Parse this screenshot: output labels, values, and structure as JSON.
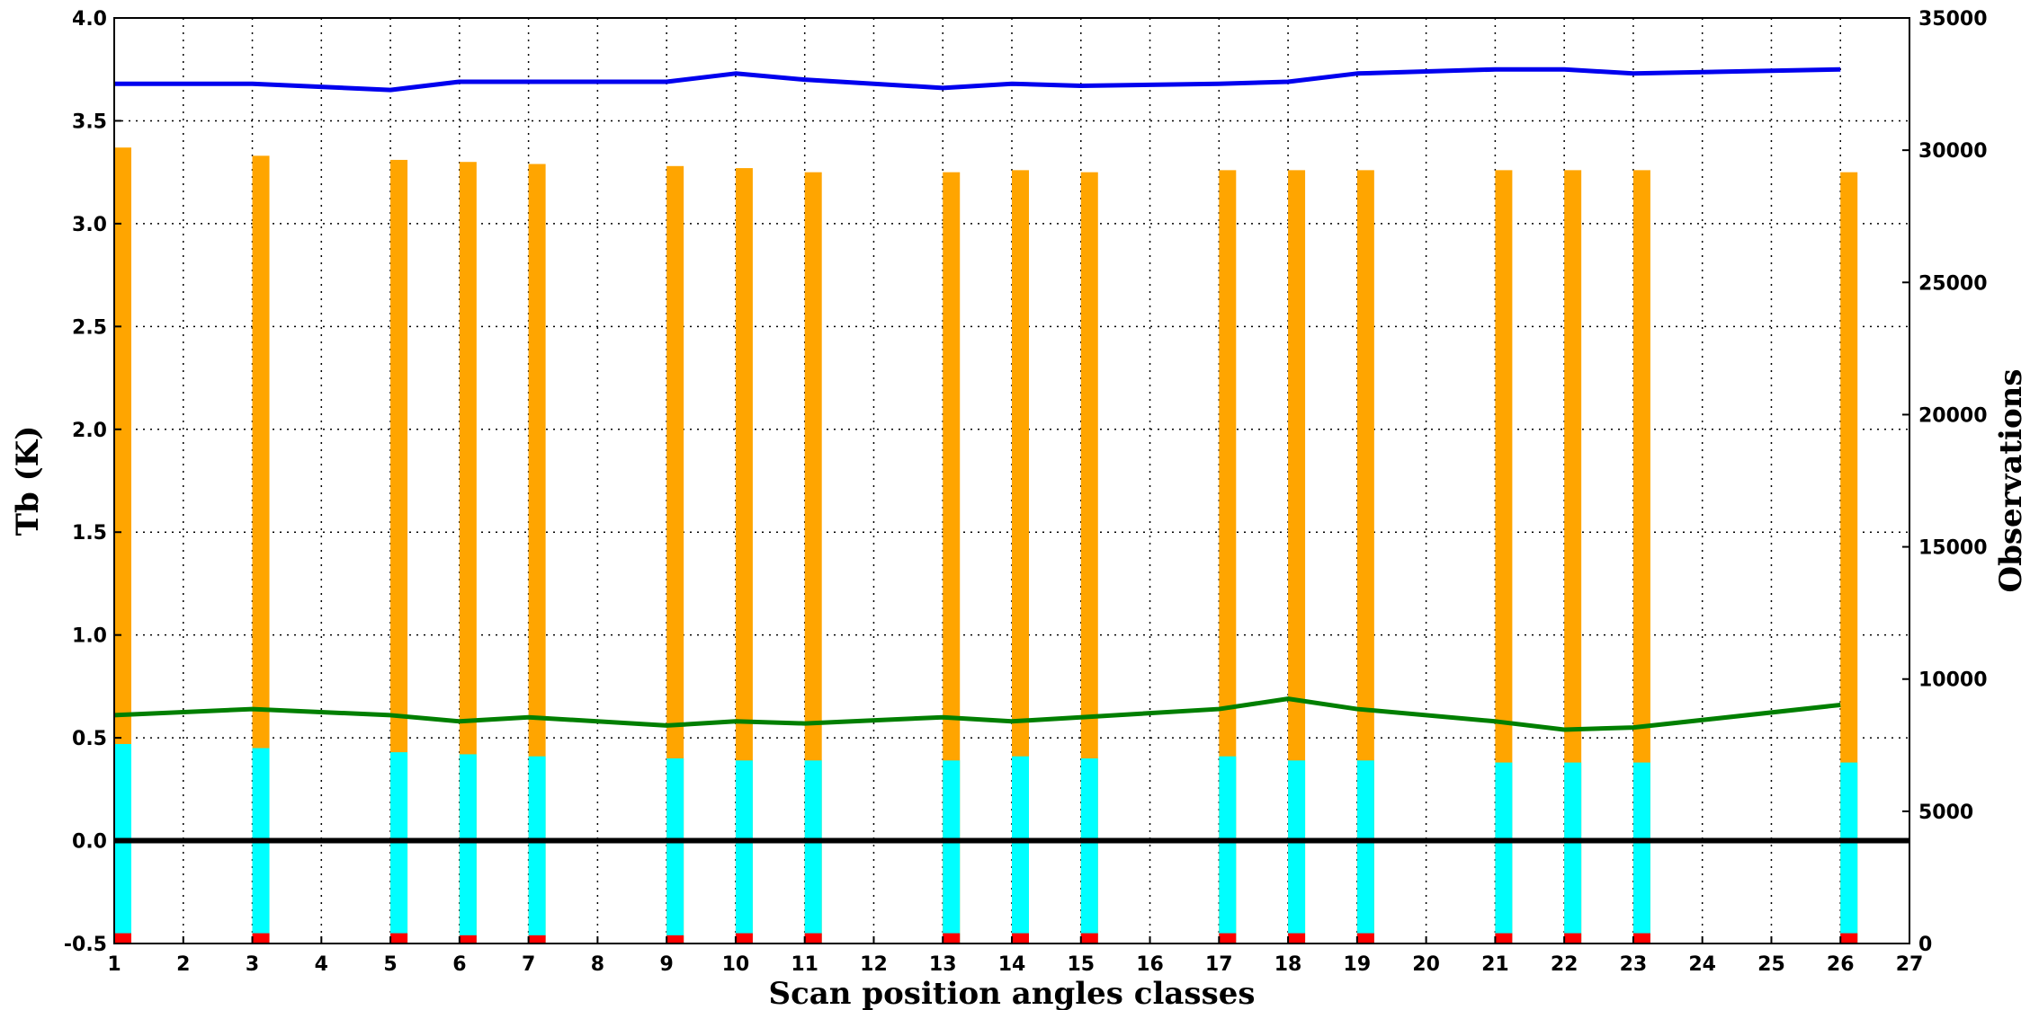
{
  "chart_data": {
    "type": "bar",
    "title": "",
    "xlabel": "Scan position angles classes",
    "ylabel": "Tb (K)",
    "y2label": "Observations",
    "xlim": [
      1,
      27
    ],
    "ylim": [
      -0.5,
      4.0
    ],
    "y2lim": [
      0,
      35000
    ],
    "xticks": [
      1,
      2,
      3,
      4,
      5,
      6,
      7,
      8,
      9,
      10,
      11,
      12,
      13,
      14,
      15,
      16,
      17,
      18,
      19,
      20,
      21,
      22,
      23,
      24,
      25,
      26,
      27
    ],
    "yticks": [
      -0.5,
      0.0,
      0.5,
      1.0,
      1.5,
      2.0,
      2.5,
      3.0,
      3.5,
      4.0
    ],
    "y2ticks": [
      0,
      5000,
      10000,
      15000,
      20000,
      25000,
      30000,
      35000
    ],
    "grid": true,
    "colors": {
      "orange": "#ffa500",
      "cyan": "#00ffff",
      "red": "#ff0000",
      "blue": "#0000ee",
      "green": "#007f00",
      "black": "#000000"
    },
    "x": [
      1,
      3,
      5,
      6,
      7,
      9,
      10,
      11,
      13,
      14,
      15,
      17,
      18,
      19,
      21,
      22,
      23,
      26
    ],
    "series": [
      {
        "axis": "left",
        "kind": "bar",
        "color": "#ffa500",
        "values": [
          3.37,
          3.33,
          3.31,
          3.3,
          3.29,
          3.28,
          3.27,
          3.25,
          3.25,
          3.26,
          3.25,
          3.26,
          3.26,
          3.26,
          3.26,
          3.26,
          3.26,
          3.25
        ]
      },
      {
        "axis": "left",
        "kind": "bar",
        "color": "#00ffff",
        "values": [
          0.47,
          0.45,
          0.43,
          0.42,
          0.41,
          0.4,
          0.39,
          0.39,
          0.39,
          0.41,
          0.4,
          0.41,
          0.39,
          0.39,
          0.38,
          0.38,
          0.38,
          0.38
        ]
      },
      {
        "axis": "left",
        "kind": "bar",
        "color": "#ff0000",
        "values": [
          -0.45,
          -0.45,
          -0.45,
          -0.46,
          -0.46,
          -0.46,
          -0.45,
          -0.45,
          -0.45,
          -0.45,
          -0.45,
          -0.45,
          -0.45,
          -0.45,
          -0.45,
          -0.45,
          -0.45,
          -0.45
        ]
      },
      {
        "axis": "left",
        "kind": "line",
        "color": "#0000ee",
        "values": [
          3.68,
          3.68,
          3.65,
          3.69,
          3.69,
          3.69,
          3.73,
          3.7,
          3.66,
          3.68,
          3.67,
          3.68,
          3.69,
          3.73,
          3.75,
          3.75,
          3.73,
          3.75
        ]
      },
      {
        "axis": "left",
        "kind": "line",
        "color": "#007f00",
        "values": [
          0.61,
          0.64,
          0.61,
          0.58,
          0.6,
          0.56,
          0.58,
          0.57,
          0.6,
          0.58,
          0.6,
          0.64,
          0.69,
          0.64,
          0.58,
          0.54,
          0.55,
          0.66
        ]
      },
      {
        "axis": "left",
        "kind": "hline",
        "color": "#000000",
        "value": 0.0
      }
    ]
  }
}
